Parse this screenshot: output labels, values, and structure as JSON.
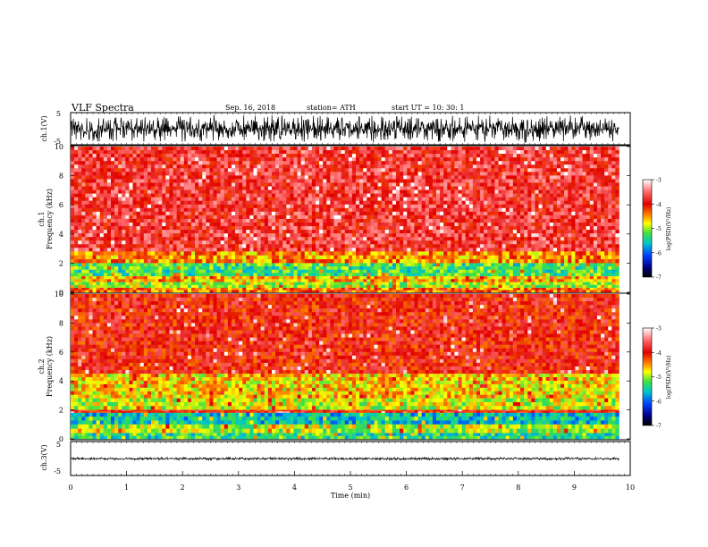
{
  "header": {
    "title": "VLF  Spectra",
    "date": "Sep. 16, 2018",
    "station": "station= ATH",
    "start": "start  UT  =    10: 30: 1"
  },
  "chart_data": [
    {
      "type": "line",
      "id": "ch1-waveform",
      "ylabel": "ch.1(V)",
      "ylim": [
        -5,
        5
      ],
      "yticks": [
        "5",
        "-5"
      ],
      "x": [
        0.0,
        0.5,
        1.0,
        1.5,
        2.0,
        2.5,
        3.0,
        3.5,
        4.0,
        4.5,
        5.0,
        5.5,
        6.0,
        6.5,
        7.0,
        7.5,
        8.0,
        8.5,
        9.0,
        9.5,
        9.8
      ],
      "envelope_min": [
        -4.5,
        -4.6,
        -4.4,
        -4.7,
        -4.5,
        -4.6,
        -4.8,
        -4.5,
        -4.6,
        -4.7,
        -4.5,
        -4.6,
        -4.4,
        -4.7,
        -4.5,
        -4.6,
        -4.8,
        -4.5,
        -4.6,
        -4.5,
        -4.5
      ],
      "envelope_max": [
        4.6,
        4.4,
        4.7,
        4.5,
        4.6,
        4.8,
        4.5,
        4.6,
        4.7,
        4.5,
        4.6,
        4.4,
        4.7,
        4.5,
        4.6,
        4.8,
        4.5,
        4.6,
        4.7,
        4.5,
        4.6
      ],
      "color": "#000000"
    },
    {
      "type": "heatmap",
      "id": "ch1-spectrogram",
      "ylabel": "ch.1\nFrequency (kHz)",
      "ylim": [
        0,
        10
      ],
      "yticks": [
        "0",
        "2",
        "4",
        "6",
        "8",
        "10"
      ],
      "xlim": [
        0,
        10
      ],
      "bands": [
        {
          "from": 2.8,
          "to": 10.0,
          "level": -3.8
        },
        {
          "from": 2.0,
          "to": 2.8,
          "level": -4.5
        },
        {
          "from": 1.1,
          "to": 2.0,
          "level": -5.3
        },
        {
          "from": 0.7,
          "to": 1.1,
          "level": -4.6
        },
        {
          "from": 0.3,
          "to": 0.7,
          "level": -5.0
        },
        {
          "from": 0.0,
          "to": 0.3,
          "level": -4.4
        }
      ],
      "colorbar": {
        "label": "log(PSD)(V²/Hz)",
        "range": [
          -7,
          -3
        ],
        "ticks": [
          "-3",
          "-4",
          "-5",
          "-6",
          "-7"
        ]
      }
    },
    {
      "type": "heatmap",
      "id": "ch2-spectrogram",
      "ylabel": "ch.2\nFrequency (kHz)",
      "ylim": [
        0,
        10
      ],
      "yticks": [
        "0",
        "2",
        "4",
        "6",
        "8",
        "10"
      ],
      "xlim": [
        0,
        10
      ],
      "bands": [
        {
          "from": 4.5,
          "to": 10.0,
          "level": -4.0
        },
        {
          "from": 2.8,
          "to": 4.5,
          "level": -4.7
        },
        {
          "from": 2.0,
          "to": 2.8,
          "level": -4.9
        },
        {
          "from": 1.8,
          "to": 2.0,
          "level": -4.0
        },
        {
          "from": 1.0,
          "to": 1.8,
          "level": -5.6
        },
        {
          "from": 0.4,
          "to": 1.0,
          "level": -5.0
        },
        {
          "from": 0.0,
          "to": 0.4,
          "level": -5.4
        }
      ],
      "colorbar": {
        "label": "log(PSD)(V²/Hz)",
        "range": [
          -7,
          -3
        ],
        "ticks": [
          "-3",
          "-4",
          "-5",
          "-6",
          "-7"
        ]
      }
    },
    {
      "type": "line",
      "id": "ch3-waveform",
      "ylabel": "ch.3(V)",
      "ylim": [
        -5,
        5
      ],
      "yticks": [
        "5",
        "-5"
      ],
      "x": [
        0.0,
        9.8
      ],
      "envelope_min": [
        -0.5,
        -0.5
      ],
      "envelope_max": [
        0.4,
        0.4
      ],
      "color": "#000000"
    }
  ],
  "xaxis": {
    "label": "Time  (min)",
    "ticks": [
      "0",
      "1",
      "2",
      "3",
      "4",
      "5",
      "6",
      "7",
      "8",
      "9",
      "10"
    ],
    "range": [
      0,
      10
    ],
    "data_end": 9.8
  }
}
